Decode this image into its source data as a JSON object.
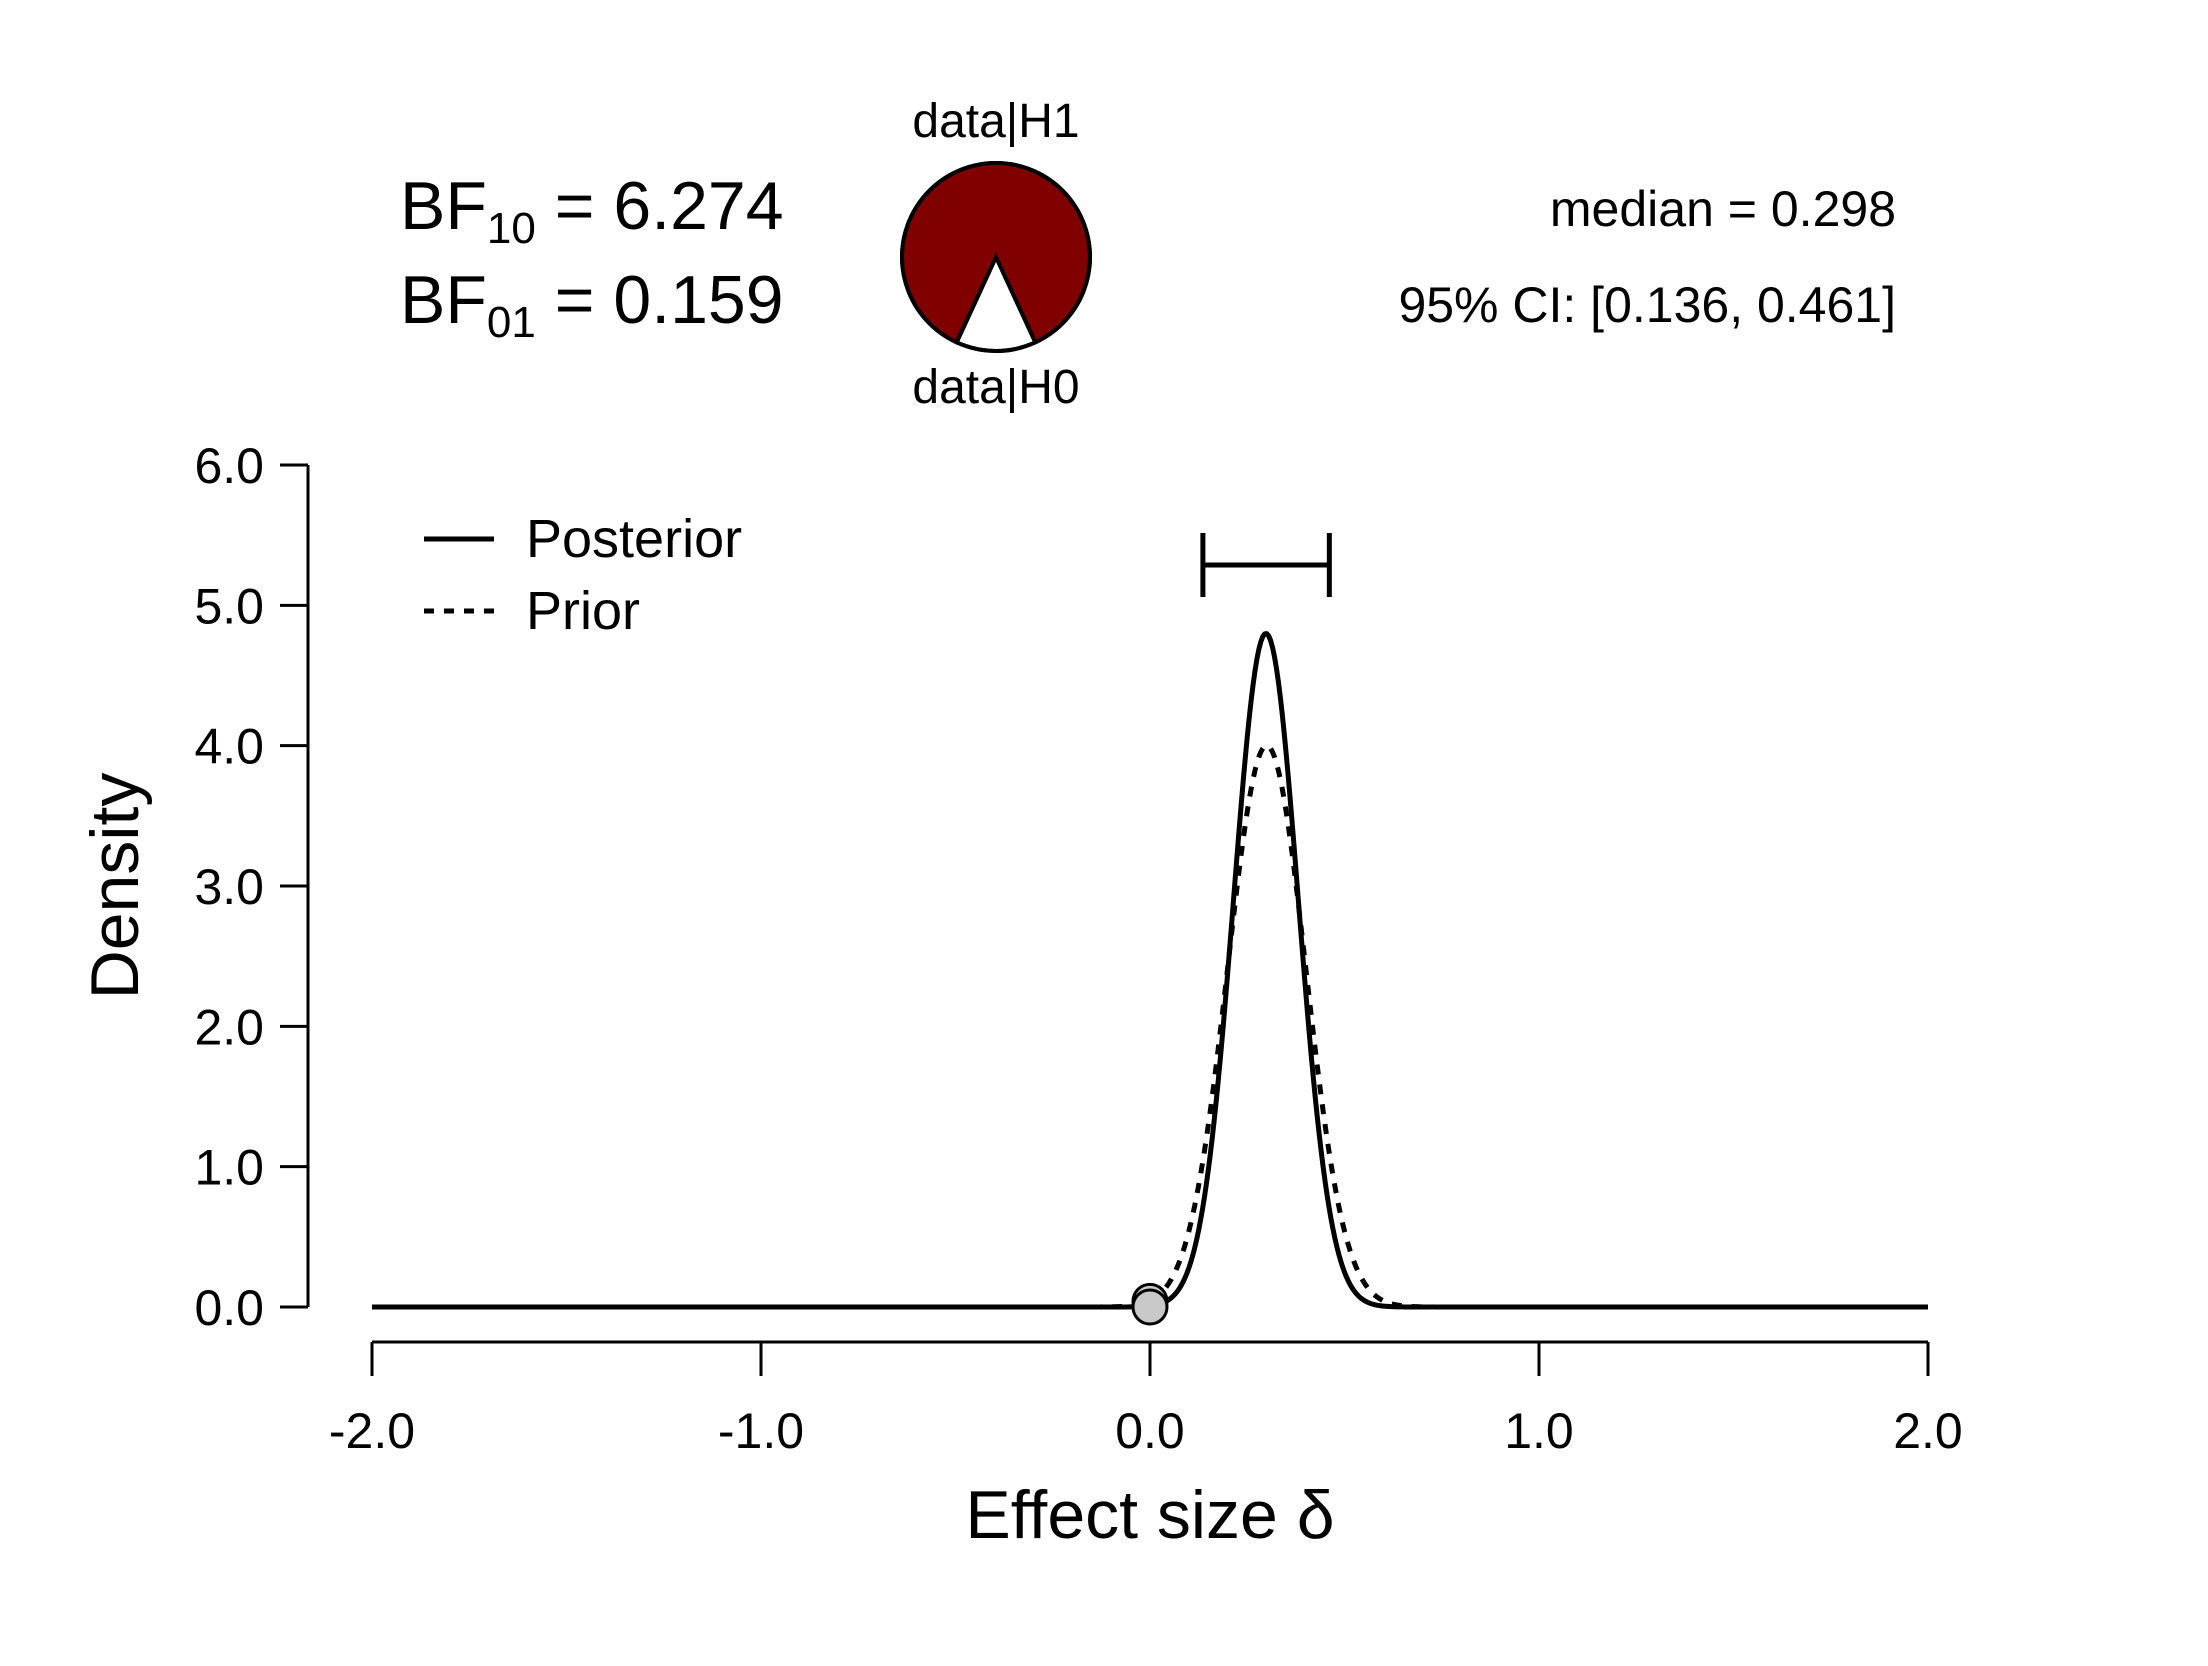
{
  "bayes_factors": {
    "bf10_prefix": "BF",
    "bf10_sub": "10",
    "bf10_value": "= 6.274",
    "bf01_prefix": "BF",
    "bf01_sub": "01",
    "bf01_value": "= 0.159"
  },
  "pie": {
    "top_label": "data|H1",
    "bottom_label": "data|H0",
    "h1_fraction": 0.8625,
    "h0_fraction": 0.1375,
    "h1_color": "#800000",
    "h0_color": "#ffffff"
  },
  "summary": {
    "median": "median = 0.298",
    "ci": "95% CI: [0.136, 0.461]"
  },
  "chart_data": {
    "type": "line",
    "xlabel": "Effect size δ",
    "ylabel": "Density",
    "xlim": [
      -2.0,
      2.0
    ],
    "ylim": [
      0.0,
      6.0
    ],
    "xticks": [
      "-2.0",
      "-1.0",
      "0.0",
      "1.0",
      "2.0"
    ],
    "xtick_values": [
      -2,
      -1,
      0,
      1,
      2
    ],
    "yticks": [
      "0.0",
      "1.0",
      "2.0",
      "3.0",
      "4.0",
      "5.0",
      "6.0"
    ],
    "ytick_values": [
      0,
      1,
      2,
      3,
      4,
      5,
      6
    ],
    "legend": {
      "position": "top-left",
      "entries": [
        "Posterior",
        "Prior"
      ]
    },
    "series": [
      {
        "name": "Posterior",
        "style": "solid",
        "distribution": "normal",
        "mean": 0.298,
        "sd": 0.083,
        "peak": 4.8
      },
      {
        "name": "Prior",
        "style": "dotted",
        "distribution": "normal",
        "mean": 0.3,
        "sd": 0.1,
        "peak": 4.0
      }
    ],
    "credible_interval": {
      "lower": 0.136,
      "upper": 0.461,
      "level": "95%"
    },
    "points": [
      {
        "x": 0.0,
        "y": 0.04
      },
      {
        "x": 0.0,
        "y": 0.0
      }
    ],
    "grid": false
  }
}
